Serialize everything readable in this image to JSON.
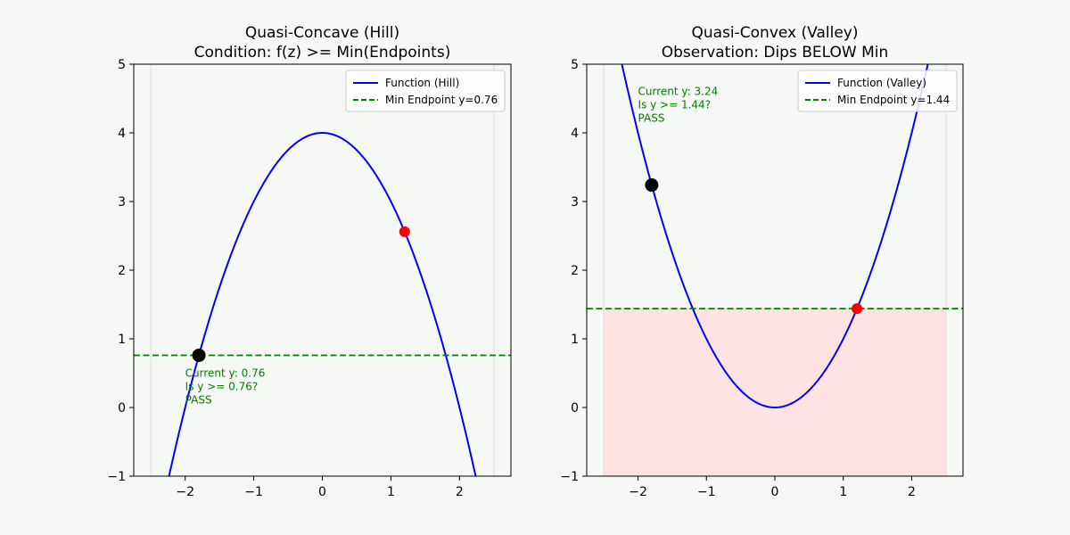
{
  "colors": {
    "figure_bg": "#f5f8f4",
    "axes_bg": "#f5f8f4",
    "function": "#0000ff",
    "min_line": "#008000",
    "current_point": "#000000",
    "endpoint_point": "#ff0000",
    "annotation": "#008000",
    "fill_below_min": "#ffe2e2",
    "boundary_line": "#e6e0e0"
  },
  "chart_data": [
    {
      "type": "line",
      "title_line1": "Quasi-Concave (Hill)",
      "title_line2": "Condition: f(z) >= Min(Endpoints)",
      "xlabel": "",
      "ylabel": "",
      "xlim": [
        -2.75,
        2.75
      ],
      "ylim": [
        -1,
        5
      ],
      "xticks": [
        -2,
        -1,
        0,
        1,
        2
      ],
      "yticks": [
        -1,
        0,
        1,
        2,
        3,
        4,
        5
      ],
      "tick_labels_x": [
        "−2",
        "−1",
        "0",
        "1",
        "2"
      ],
      "tick_labels_y": [
        "−1",
        "0",
        "1",
        "2",
        "3",
        "4",
        "5"
      ],
      "grid": false,
      "legend_position": "upper right",
      "series": [
        {
          "name": "Function (Hill)",
          "function": "4 - x^2",
          "x_range": [
            -2.5,
            2.5
          ],
          "style": "solid"
        },
        {
          "name": "Min Endpoint y=0.76",
          "y": 0.76,
          "style": "dashed"
        }
      ],
      "boundaries_x": [
        -2.5,
        2.5
      ],
      "current_point": {
        "x": -1.8,
        "y": 0.76
      },
      "endpoint_point": {
        "x": 1.2,
        "y": 2.56
      },
      "shaded_below_min": false,
      "annotation": {
        "x": -2.0,
        "y": 0.45,
        "lines": [
          "Current y: 0.76",
          "Is y >= 0.76?",
          "PASS"
        ]
      }
    },
    {
      "type": "line",
      "title_line1": "Quasi-Convex (Valley)",
      "title_line2": "Observation: Dips BELOW Min",
      "xlabel": "",
      "ylabel": "",
      "xlim": [
        -2.75,
        2.75
      ],
      "ylim": [
        -1,
        5
      ],
      "xticks": [
        -2,
        -1,
        0,
        1,
        2
      ],
      "yticks": [
        -1,
        0,
        1,
        2,
        3,
        4,
        5
      ],
      "tick_labels_x": [
        "−2",
        "−1",
        "0",
        "1",
        "2"
      ],
      "tick_labels_y": [
        "−1",
        "0",
        "1",
        "2",
        "3",
        "4",
        "5"
      ],
      "grid": false,
      "legend_position": "upper right",
      "series": [
        {
          "name": "Function (Valley)",
          "function": "x^2",
          "x_range": [
            -2.5,
            2.5
          ],
          "style": "solid"
        },
        {
          "name": "Min Endpoint y=1.44",
          "y": 1.44,
          "style": "dashed"
        }
      ],
      "boundaries_x": [
        -2.5,
        2.5
      ],
      "current_point": {
        "x": -1.8,
        "y": 3.24
      },
      "endpoint_point": {
        "x": 1.2,
        "y": 1.44
      },
      "shaded_below_min": true,
      "annotation": {
        "x": -2.0,
        "y": 4.55,
        "lines": [
          "Current y: 3.24",
          "Is y >= 1.44?",
          "PASS"
        ]
      }
    }
  ]
}
